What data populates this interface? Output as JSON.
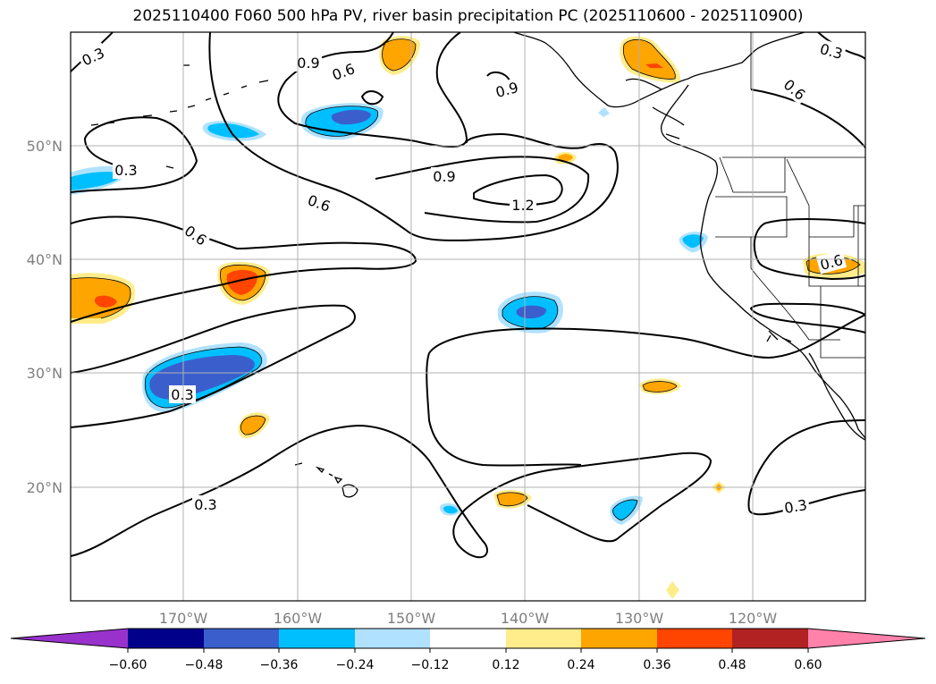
{
  "title": "2025110400 F060 500 hPa PV, river basin precipitation PC (2025110600 - 2025110900)",
  "longitude_ticks": [
    "170°W",
    "160°W",
    "150°W",
    "140°W",
    "130°W",
    "120°W"
  ],
  "latitude_ticks": [
    "50°N",
    "40°N",
    "30°N",
    "20°N"
  ],
  "colorbar": {
    "labels": [
      "−0.60",
      "−0.48",
      "−0.36",
      "−0.24",
      "−0.12",
      "0.12",
      "0.24",
      "0.36",
      "0.48",
      "0.60"
    ],
    "colors": [
      "#9932cc",
      "#00008b",
      "#3a5fcd",
      "#00bfff",
      "#b0e2ff",
      "#ffffff",
      "#ffec8b",
      "#ffa500",
      "#ff4500",
      "#b22222",
      "#ff82ab"
    ]
  },
  "contour_labels": {
    "c03_nw": "0.3",
    "c09_top": "0.9",
    "c06_top": "0.6",
    "c09_n": "0.9",
    "c03_ne": "0.3",
    "c06_ne": "0.6",
    "c03_w": "0.3",
    "c09_c": "0.9",
    "c06_w": "0.6",
    "c12_c": "1.2",
    "c06_w2": "0.6",
    "c06_e": "0.6",
    "c03_sw": "0.3",
    "c03_s": "0.3",
    "c03_se": "0.3"
  },
  "map_features": [
    "hawaii-islands",
    "north-america-coast",
    "us-state-borders"
  ]
}
